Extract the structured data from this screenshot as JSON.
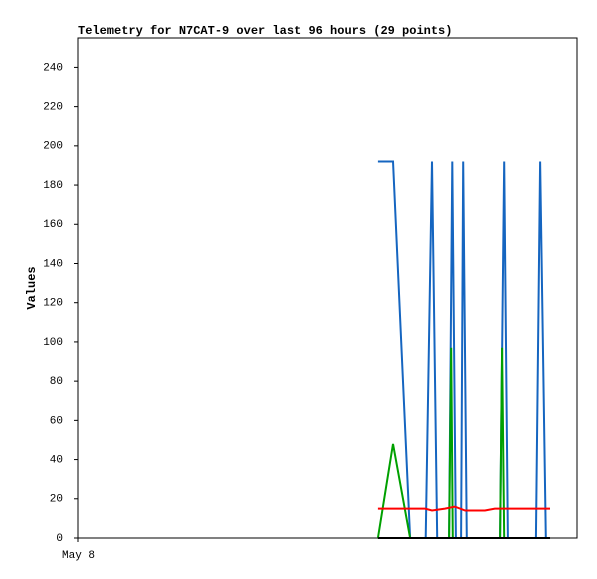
{
  "chart_data": {
    "type": "line",
    "title": "Telemetry for N7CAT-9 over last 96 hours (29 points)",
    "ylabel": "Values",
    "xlim": [
      0,
      96
    ],
    "xticks": [
      {
        "value": 0,
        "label": "May 8"
      }
    ],
    "ylim": [
      0,
      255
    ],
    "yticks": [
      0,
      20,
      40,
      60,
      80,
      100,
      120,
      140,
      160,
      180,
      200,
      220,
      240
    ],
    "grid": false,
    "series": [
      {
        "color": "#1565c0",
        "x": [
          57.7,
          60.6,
          63.9,
          66.9,
          68.1,
          69.1,
          71.4,
          72.0,
          72.7,
          73.7,
          74.1,
          74.8,
          81.2,
          82.0,
          82.7,
          88.1,
          88.9,
          90.0,
          90.8
        ],
        "values": [
          192,
          192,
          0,
          0,
          192,
          0,
          0,
          192,
          0,
          0,
          192,
          0,
          0,
          192,
          0,
          0,
          192,
          0,
          0
        ]
      },
      {
        "color": "#00a000",
        "x": [
          57.7,
          60.6,
          63.9,
          71.4,
          71.8,
          72.1,
          81.2,
          81.6,
          82.0,
          90.8
        ],
        "values": [
          0,
          48,
          0,
          0,
          97,
          0,
          0,
          97,
          0,
          0
        ]
      },
      {
        "color": "#ff0000",
        "x": [
          57.7,
          66.8,
          68.1,
          70.6,
          72.5,
          74.5,
          78.3,
          80.2,
          90.8
        ],
        "values": [
          15,
          15,
          14,
          15,
          16,
          14,
          14,
          15,
          15
        ]
      },
      {
        "color": "#000000",
        "x": [
          57.7,
          90.8
        ],
        "values": [
          0,
          0
        ]
      }
    ]
  }
}
